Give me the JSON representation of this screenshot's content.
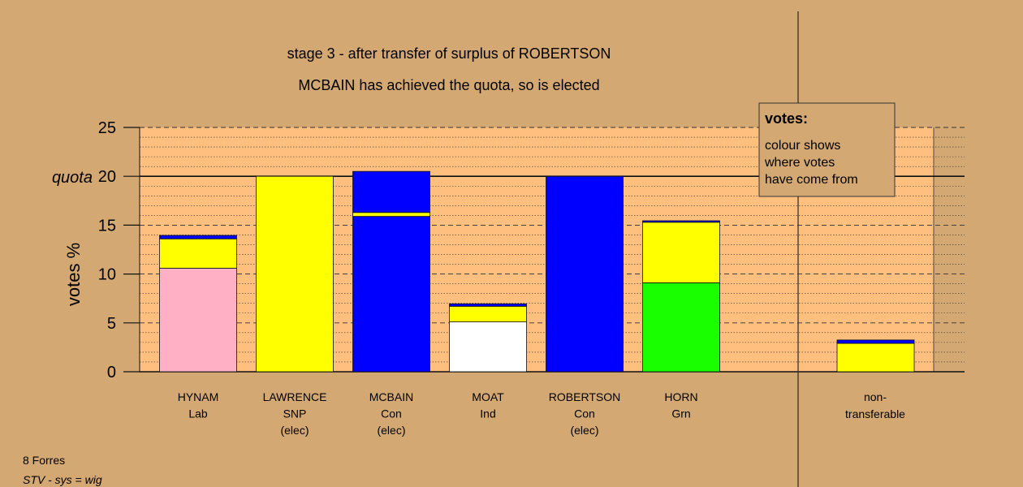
{
  "chart_data": {
    "type": "bar",
    "stacked": true,
    "title": "stage 3 - after transfer of surplus of ROBERTSON",
    "subtitle": "MCBAIN has achieved the quota, so is elected",
    "ylabel": "votes %",
    "quota_label": "quota",
    "quota": 20,
    "ylim": [
      0,
      25
    ],
    "yticks": [
      0,
      5,
      10,
      15,
      20,
      25
    ],
    "grid": true,
    "legend": {
      "position": "top-right",
      "title": "votes:",
      "lines": [
        "colour shows",
        "where votes",
        "have come from"
      ]
    },
    "colors": {
      "Lab": "#ffb0c4",
      "SNP": "#ffff00",
      "Con": "#0000ff",
      "Ind": "#ffffff",
      "Grn": "#1aff00",
      "dark": "#000080"
    },
    "candidates": [
      {
        "name": "HYNAM",
        "party": "Lab",
        "note": "",
        "segments": [
          {
            "from": "Lab",
            "value": 10.6
          },
          {
            "from": "SNP",
            "value": 3.0
          },
          {
            "from": "Con",
            "value": 0.35
          }
        ]
      },
      {
        "name": "LAWRENCE",
        "party": "SNP",
        "note": "(elec)",
        "segments": [
          {
            "from": "SNP",
            "value": 20.0
          }
        ]
      },
      {
        "name": "MCBAIN",
        "party": "Con",
        "note": "(elec)",
        "segments": [
          {
            "from": "Con",
            "value": 15.9
          },
          {
            "from": "SNP",
            "value": 0.4
          },
          {
            "from": "Con",
            "value": 4.2
          }
        ]
      },
      {
        "name": "MOAT",
        "party": "Ind",
        "note": "",
        "segments": [
          {
            "from": "Ind",
            "value": 5.1
          },
          {
            "from": "SNP",
            "value": 1.6
          },
          {
            "from": "Con",
            "value": 0.25
          }
        ]
      },
      {
        "name": "ROBERTSON",
        "party": "Con",
        "note": "(elec)",
        "segments": [
          {
            "from": "Con",
            "value": 20.0
          }
        ]
      },
      {
        "name": "HORN",
        "party": "Grn",
        "note": "",
        "segments": [
          {
            "from": "Grn",
            "value": 9.1
          },
          {
            "from": "SNP",
            "value": 6.2
          },
          {
            "from": "Con",
            "value": 0.15
          }
        ]
      }
    ],
    "nontransferable": {
      "label1": "non-",
      "label2": "transferable",
      "segments": [
        {
          "from": "SNP",
          "value": 2.9
        },
        {
          "from": "Con",
          "value": 0.35
        }
      ]
    }
  },
  "footer": {
    "line1": "8 Forres",
    "line2": "STV - sys = wig"
  }
}
